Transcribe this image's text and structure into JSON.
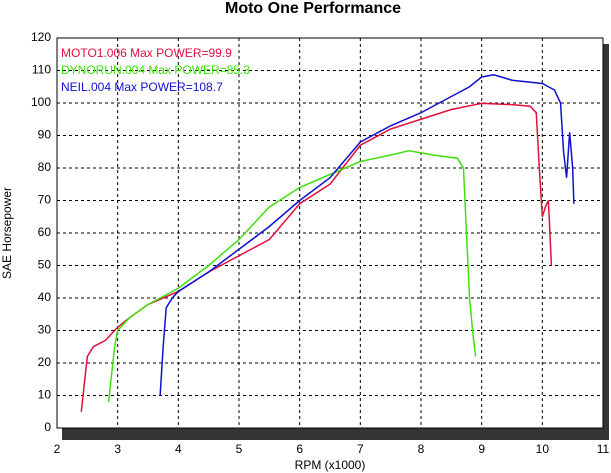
{
  "chart_data": {
    "type": "line",
    "title": "Moto One Performance",
    "x_label": "RPM (x1000)",
    "y_label": "SAE Horsepower",
    "xlim": [
      2,
      11
    ],
    "ylim": [
      0,
      120
    ],
    "xticks": [
      2,
      3,
      4,
      5,
      6,
      7,
      8,
      9,
      10,
      11
    ],
    "yticks": [
      0,
      10,
      20,
      30,
      40,
      50,
      60,
      70,
      80,
      90,
      100,
      110,
      120
    ],
    "grid": true,
    "legend": "top-left",
    "series": [
      {
        "name": "MOTO1.006  Max POWER=99.9",
        "color": "#e0103a",
        "x": [
          2.4,
          2.5,
          2.6,
          2.8,
          3.0,
          3.2,
          3.5,
          4,
          4.5,
          5,
          5.5,
          6,
          6.5,
          7,
          7.5,
          8,
          8.5,
          9,
          9.5,
          9.8,
          9.9,
          9.95,
          10.0,
          10.05,
          10.1,
          10.15
        ],
        "values": [
          5,
          22,
          25,
          27,
          31,
          34,
          38,
          42,
          48,
          53,
          58,
          69,
          75,
          87,
          92,
          95,
          98,
          99.9,
          99.5,
          99,
          97,
          80,
          65,
          68,
          70,
          50
        ]
      },
      {
        "name": "DYNORUN.004  Max POWER=85.3",
        "color": "#40e010",
        "x": [
          2.85,
          2.95,
          3.0,
          3.2,
          3.5,
          4,
          4.5,
          5,
          5.5,
          6,
          6.5,
          7,
          7.5,
          7.8,
          8.2,
          8.6,
          8.7,
          8.75,
          8.8,
          8.85,
          8.9
        ],
        "values": [
          8,
          25,
          30,
          34,
          38,
          43,
          50,
          58,
          68,
          74,
          78,
          82,
          84,
          85.3,
          84,
          83,
          80,
          60,
          40,
          30,
          22
        ]
      },
      {
        "name": "NEIL.004  Max POWER=108.7",
        "color": "#1010d0",
        "x": [
          3.7,
          3.75,
          3.8,
          3.9,
          4,
          4.5,
          5,
          5.5,
          6,
          6.5,
          7,
          7.5,
          8,
          8.5,
          8.8,
          9.0,
          9.2,
          9.5,
          10,
          10.2,
          10.3,
          10.35,
          10.4,
          10.45,
          10.5,
          10.52
        ],
        "values": [
          10,
          25,
          37,
          40,
          42,
          48,
          55,
          62,
          70,
          77,
          88,
          93,
          97,
          102,
          105,
          108,
          108.7,
          107,
          106,
          104,
          100,
          85,
          77,
          91,
          80,
          69
        ]
      }
    ]
  }
}
